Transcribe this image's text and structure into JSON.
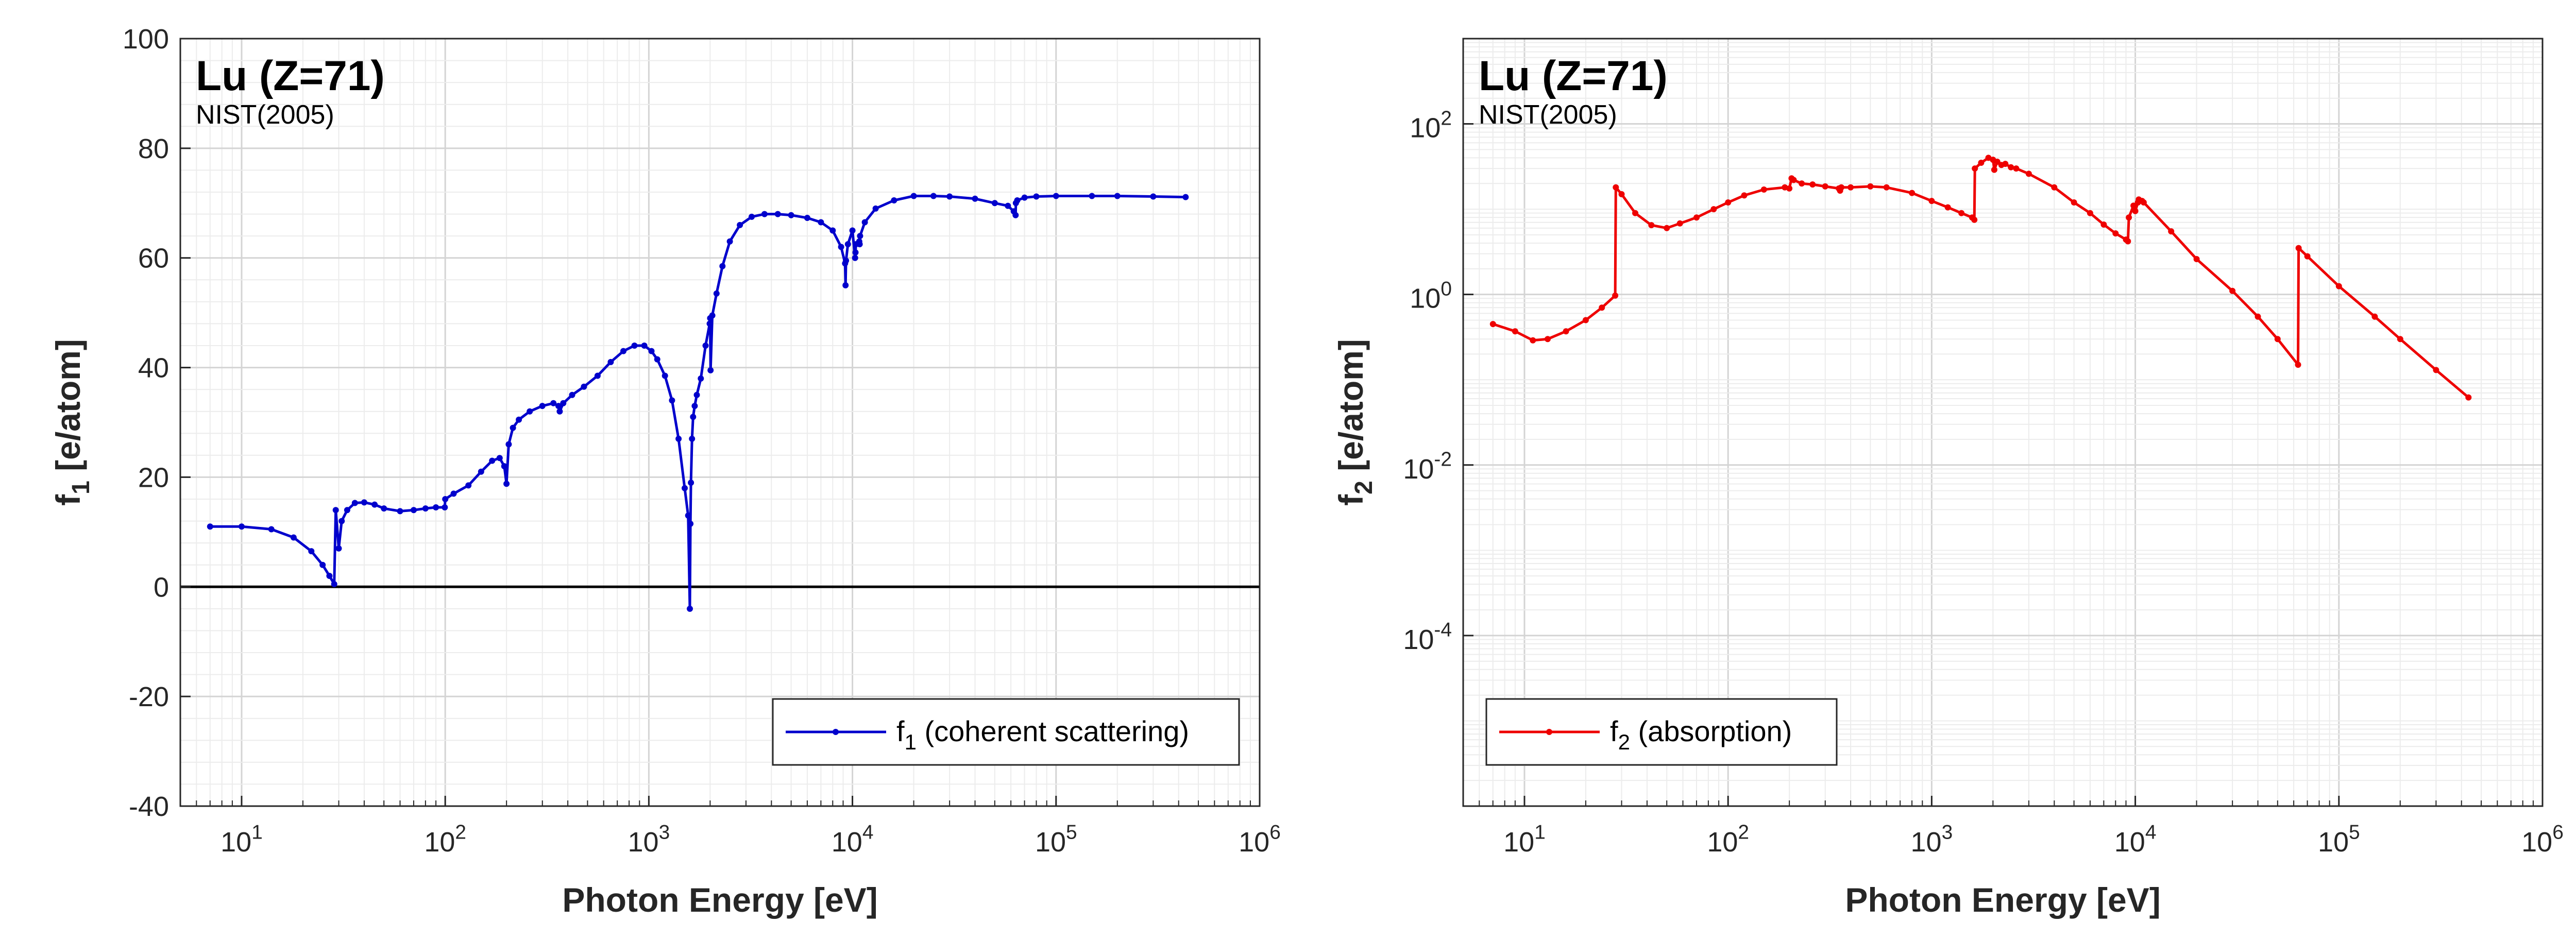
{
  "chart_data": [
    {
      "type": "line",
      "title": "Lu (Z=71)",
      "subtitle": "NIST(2005)",
      "xlabel": "Photon Energy [eV]",
      "ylabel": {
        "main": "f",
        "sub": "1",
        "rest": " [e/atom]"
      },
      "xscale": "log",
      "xlim": [
        5,
        1000000
      ],
      "ylim": [
        -40,
        100
      ],
      "yscale": "linear",
      "yticks": [
        "-40",
        "-20",
        "0",
        "20",
        "40",
        "60",
        "80",
        "100"
      ],
      "xticks": [
        {
          "base": "10",
          "exp": "1"
        },
        {
          "base": "10",
          "exp": "2"
        },
        {
          "base": "10",
          "exp": "3"
        },
        {
          "base": "10",
          "exp": "4"
        },
        {
          "base": "10",
          "exp": "5"
        },
        {
          "base": "10",
          "exp": "6"
        }
      ],
      "grid": true,
      "zero_line": true,
      "legend": {
        "position": "bottom-right",
        "main": "f",
        "sub": "1",
        "rest": " (coherent scattering)"
      },
      "series": [
        {
          "color": "#0000cc",
          "x": [
            7,
            10,
            14,
            18,
            22,
            25,
            27,
            28.5,
            29,
            30,
            31,
            33,
            36,
            40,
            45,
            50,
            60,
            70,
            80,
            90,
            99.5,
            100,
            110,
            130,
            150,
            170,
            185,
            195,
            200,
            205,
            215,
            230,
            260,
            300,
            340,
            360,
            365,
            380,
            420,
            480,
            560,
            650,
            750,
            850,
            950,
            1030,
            1100,
            1200,
            1300,
            1400,
            1500,
            1560,
            1590,
            1600,
            1610,
            1630,
            1650,
            1680,
            1720,
            1800,
            1900,
            1990,
            2000,
            2010,
            2050,
            2150,
            2300,
            2500,
            2800,
            3200,
            3700,
            4300,
            5000,
            6000,
            7000,
            8000,
            8800,
            9200,
            9250,
            9300,
            9500,
            10000,
            10300,
            10350,
            10400,
            10800,
            10850,
            10900,
            11500,
            13000,
            16000,
            20000,
            25000,
            30000,
            40000,
            50000,
            58000,
            62000,
            63300,
            63500,
            64500,
            70000,
            80000,
            100000,
            150000,
            200000,
            300000,
            433000
          ],
          "y": [
            11,
            11,
            10.5,
            9,
            6.5,
            4,
            2,
            0.5,
            14,
            7,
            12,
            14,
            15.3,
            15.4,
            15,
            14.3,
            13.8,
            14,
            14.3,
            14.5,
            14.5,
            16,
            17,
            18.5,
            21,
            23,
            23.5,
            22,
            18.8,
            26,
            29,
            30.5,
            32,
            33,
            33.5,
            33,
            32,
            33.5,
            35,
            36.5,
            38.5,
            41,
            43,
            44,
            44,
            43,
            41.5,
            38.5,
            34,
            27,
            18,
            13,
            -4,
            11.5,
            19,
            27,
            31,
            33,
            35,
            38,
            44,
            48,
            49,
            39.5,
            49.5,
            53.5,
            58.5,
            63,
            66,
            67.5,
            68,
            68,
            67.8,
            67.3,
            66.5,
            65,
            62,
            59,
            55,
            59.5,
            62.5,
            65,
            60,
            61,
            62.5,
            63,
            62.5,
            64,
            66.5,
            69,
            70.5,
            71.3,
            71.3,
            71.2,
            70.8,
            70,
            69.5,
            68.5,
            67.8,
            70,
            70.5,
            71,
            71.2,
            71.3,
            71.3,
            71.3,
            71.2,
            71.1
          ]
        }
      ]
    },
    {
      "type": "line",
      "title": "Lu (Z=71)",
      "subtitle": "NIST(2005)",
      "xlabel": "Photon Energy [eV]",
      "ylabel": {
        "main": "f",
        "sub": "2",
        "rest": " [e/atom]"
      },
      "xscale": "log",
      "xlim": [
        5,
        1000000
      ],
      "yscale": "log",
      "ylim": [
        1e-06,
        1000
      ],
      "yticks": [
        {
          "base": "10",
          "exp": "-4"
        },
        {
          "base": "10",
          "exp": "-2"
        },
        {
          "base": "10",
          "exp": "0"
        },
        {
          "base": "10",
          "exp": "2"
        }
      ],
      "xticks": [
        {
          "base": "10",
          "exp": "1"
        },
        {
          "base": "10",
          "exp": "2"
        },
        {
          "base": "10",
          "exp": "3"
        },
        {
          "base": "10",
          "exp": "4"
        },
        {
          "base": "10",
          "exp": "5"
        },
        {
          "base": "10",
          "exp": "6"
        }
      ],
      "grid": true,
      "legend": {
        "position": "bottom-left",
        "main": "f",
        "sub": "2",
        "rest": " (absorption)"
      },
      "series": [
        {
          "color": "#ee0000",
          "x": [
            7,
            9,
            11,
            13,
            16,
            20,
            24,
            27.9,
            28.1,
            30,
            35,
            42,
            50,
            58,
            70,
            85,
            100,
            120,
            150,
            190,
            200,
            205,
            210,
            230,
            260,
            300,
            350,
            355,
            360,
            400,
            500,
            600,
            800,
            1000,
            1200,
            1400,
            1580,
            1620,
            1630,
            1750,
            1900,
            2000,
            2030,
            2100,
            2200,
            2300,
            2450,
            2600,
            3000,
            4000,
            5000,
            6000,
            7000,
            8000,
            9000,
            9200,
            9300,
            9800,
            10000,
            10300,
            10400,
            10800,
            11000,
            15000,
            20000,
            30000,
            40000,
            50000,
            63000,
            63400,
            70000,
            100000,
            150000,
            200000,
            300000,
            433000
          ],
          "y": [
            0.45,
            0.37,
            0.29,
            0.3,
            0.37,
            0.5,
            0.7,
            0.97,
            18,
            15,
            9,
            6.5,
            6,
            6.8,
            8,
            10,
            12,
            14.5,
            17,
            18,
            17.5,
            23,
            22,
            20,
            19.5,
            18.5,
            17.5,
            16.5,
            18,
            18,
            18.5,
            18,
            15.5,
            12.5,
            10.5,
            9,
            8,
            7.5,
            30,
            35,
            40,
            38,
            29,
            36,
            33,
            34,
            31,
            30,
            26,
            18,
            12,
            9,
            6.6,
            5.2,
            4.4,
            4.2,
            8,
            11,
            9.5,
            12,
            13,
            12.5,
            12,
            5.5,
            2.6,
            1.1,
            0.55,
            0.3,
            0.15,
            3.5,
            2.8,
            1.25,
            0.55,
            0.3,
            0.13,
            0.062
          ]
        }
      ]
    }
  ]
}
